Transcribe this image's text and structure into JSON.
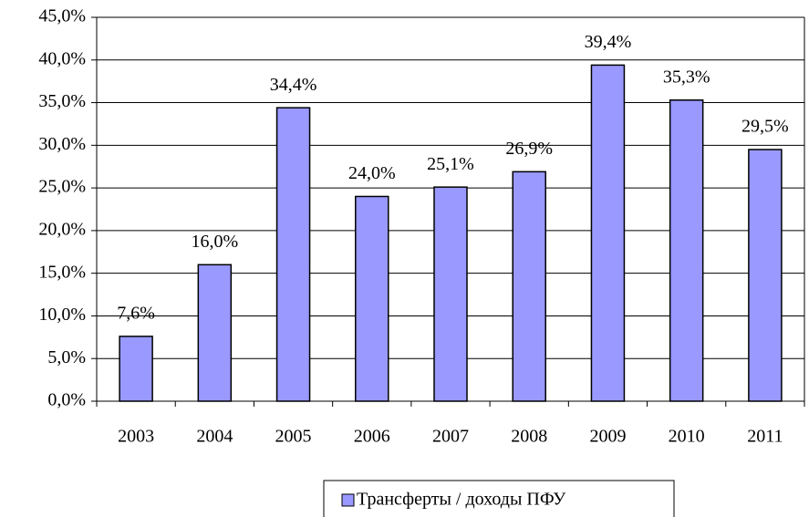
{
  "chart_data": {
    "type": "bar",
    "categories": [
      "2003",
      "2004",
      "2005",
      "2006",
      "2007",
      "2008",
      "2009",
      "2010",
      "2011"
    ],
    "series": [
      {
        "name": "Трансферты / доходы ПФУ",
        "color": "#9999ff",
        "values": [
          7.6,
          16.0,
          34.4,
          24.0,
          25.1,
          26.9,
          39.4,
          35.3,
          29.5
        ],
        "value_labels": [
          "7,6%",
          "16,0%",
          "34,4%",
          "24,0%",
          "25,1%",
          "26,9%",
          "39,4%",
          "35,3%",
          "29,5%"
        ]
      }
    ],
    "ylim": [
      0,
      45
    ],
    "yticks": [
      {
        "value": 0,
        "label": "0,0%"
      },
      {
        "value": 5,
        "label": "5,0%"
      },
      {
        "value": 10,
        "label": "10,0%"
      },
      {
        "value": 15,
        "label": "15,0%"
      },
      {
        "value": 20,
        "label": "20,0%"
      },
      {
        "value": 25,
        "label": "25,0%"
      },
      {
        "value": 30,
        "label": "30,0%"
      },
      {
        "value": 35,
        "label": "35,0%"
      },
      {
        "value": 40,
        "label": "40,0%"
      },
      {
        "value": 45,
        "label": "45,0%"
      }
    ],
    "grid": true,
    "legend": "bottom"
  }
}
